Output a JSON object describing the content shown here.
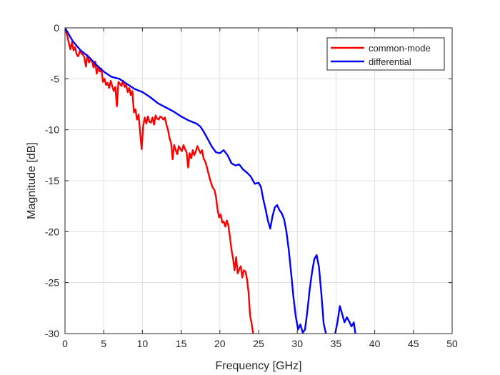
{
  "chart_data": {
    "type": "line",
    "title": "",
    "xlabel": "Frequency [GHz]",
    "ylabel": "Magnitude [dB]",
    "xlim": [
      0,
      50
    ],
    "ylim": [
      -30,
      0
    ],
    "xticks": [
      0,
      5,
      10,
      15,
      20,
      25,
      30,
      35,
      40,
      45,
      50
    ],
    "yticks": [
      0,
      -5,
      -10,
      -15,
      -20,
      -25,
      -30
    ],
    "grid": true,
    "legend_position": "top-right",
    "series": [
      {
        "name": "common-mode",
        "color": "#ff0000",
        "x": [
          0,
          0.3,
          0.5,
          0.7,
          0.9,
          1.1,
          1.3,
          1.5,
          1.7,
          1.9,
          2.1,
          2.3,
          2.5,
          2.7,
          2.9,
          3.1,
          3.3,
          3.5,
          3.7,
          3.9,
          4.1,
          4.3,
          4.5,
          4.7,
          4.9,
          5.1,
          5.3,
          5.5,
          5.7,
          5.9,
          6.1,
          6.3,
          6.5,
          6.7,
          6.9,
          7.1,
          7.3,
          7.5,
          7.7,
          7.9,
          8.1,
          8.3,
          8.5,
          8.7,
          8.9,
          9.1,
          9.3,
          9.5,
          9.7,
          9.9,
          10.1,
          10.3,
          10.5,
          10.7,
          10.9,
          11.1,
          11.3,
          11.5,
          11.7,
          11.9,
          12.1,
          12.3,
          12.5,
          12.7,
          12.9,
          13.1,
          13.3,
          13.5,
          13.7,
          13.9,
          14.1,
          14.3,
          14.5,
          14.7,
          14.9,
          15.1,
          15.3,
          15.5,
          15.7,
          15.9,
          16.1,
          16.3,
          16.5,
          16.7,
          16.9,
          17.1,
          17.3,
          17.5,
          17.7,
          17.9,
          18.1,
          18.3,
          18.5,
          18.7,
          18.9,
          19.1,
          19.3,
          19.5,
          19.7,
          19.9,
          20.1,
          20.3,
          20.5,
          20.7,
          20.9,
          21.1,
          21.3,
          21.5,
          21.7,
          21.9,
          22.1,
          22.3,
          22.5,
          22.7,
          22.9,
          23.1,
          23.3,
          23.5,
          23.7,
          23.9,
          24.1,
          24.3
        ],
        "y": [
          0,
          -0.8,
          -1.5,
          -2.1,
          -1.4,
          -2.2,
          -1.9,
          -2.6,
          -2.8,
          -2.3,
          -2.5,
          -2.6,
          -2.9,
          -3.8,
          -2.7,
          -3.4,
          -3.1,
          -3.3,
          -3.9,
          -3.3,
          -4.5,
          -3.8,
          -4.3,
          -4.0,
          -5.3,
          -5.0,
          -5.6,
          -5.4,
          -5.9,
          -5.2,
          -5.7,
          -6.2,
          -5.8,
          -7.7,
          -5.3,
          -5.5,
          -5.7,
          -5.2,
          -5.8,
          -5.6,
          -6.3,
          -5.9,
          -6.6,
          -6.2,
          -8.3,
          -8.0,
          -9.0,
          -8.5,
          -10.2,
          -11.9,
          -9.6,
          -8.8,
          -9.4,
          -8.7,
          -9.2,
          -9.3,
          -8.8,
          -9.5,
          -8.6,
          -8.9,
          -9.0,
          -8.7,
          -8.8,
          -9.0,
          -8.8,
          -9.5,
          -10.0,
          -10.8,
          -11.3,
          -12.9,
          -11.5,
          -12.0,
          -12.4,
          -11.6,
          -11.9,
          -12.1,
          -11.5,
          -11.9,
          -12.2,
          -13.7,
          -12.3,
          -12.8,
          -12.0,
          -12.5,
          -12.1,
          -11.6,
          -12.0,
          -12.3,
          -12.0,
          -12.8,
          -13.1,
          -13.6,
          -14.2,
          -14.8,
          -15.3,
          -15.7,
          -15.9,
          -16.6,
          -17.8,
          -18.6,
          -18.3,
          -19.1,
          -19.0,
          -19.5,
          -18.9,
          -19.4,
          -20.5,
          -21.8,
          -22.6,
          -23.8,
          -22.5,
          -24.1,
          -23.7,
          -23.4,
          -24.5,
          -23.8,
          -23.9,
          -24.6,
          -25.9,
          -28.2,
          -29.0,
          -30.0
        ]
      },
      {
        "name": "differential",
        "color": "#0000ff",
        "x": [
          0,
          1,
          2,
          3,
          4,
          5,
          6,
          7,
          8,
          9,
          10,
          11,
          12,
          13,
          14,
          15,
          16,
          17,
          17.5,
          18,
          18.5,
          19,
          19.5,
          20,
          20.5,
          21,
          21.5,
          22,
          22.5,
          23,
          23.5,
          24,
          24.5,
          25,
          25.3,
          25.6,
          25.9,
          26.2,
          26.5,
          26.8,
          27.1,
          27.4,
          27.7,
          28,
          28.3,
          28.6,
          28.9,
          29.2,
          29.5,
          29.8,
          30.1,
          30.4,
          30.7,
          31,
          31.3,
          31.6,
          31.9,
          32.2,
          32.5,
          32.8,
          33.1,
          33.4,
          33.7,
          34.0,
          34.3,
          34.6,
          34.9,
          35.2,
          35.5,
          35.8,
          36.1,
          36.4,
          36.7,
          37.0,
          37.3,
          37.5
        ],
        "y": [
          0,
          -1.3,
          -2.2,
          -2.8,
          -3.6,
          -4.3,
          -4.8,
          -5.0,
          -5.5,
          -6.0,
          -6.3,
          -6.8,
          -7.4,
          -7.8,
          -8.2,
          -8.7,
          -9.1,
          -9.4,
          -9.7,
          -10.3,
          -11.0,
          -11.7,
          -12.2,
          -12.3,
          -12.0,
          -12.5,
          -13.3,
          -13.5,
          -13.4,
          -13.9,
          -14.2,
          -14.6,
          -15.3,
          -15.2,
          -15.6,
          -16.8,
          -17.8,
          -18.9,
          -19.7,
          -18.5,
          -17.6,
          -17.4,
          -17.9,
          -18.2,
          -18.8,
          -20.0,
          -21.8,
          -24.0,
          -26.4,
          -28.3,
          -29.6,
          -29.1,
          -29.9,
          -29.6,
          -27.8,
          -25.7,
          -24.0,
          -22.7,
          -22.3,
          -23.5,
          -26.0,
          -29.0,
          -30.0,
          -31.5,
          -31.5,
          -31.5,
          -30.0,
          -28.8,
          -27.3,
          -28.1,
          -28.9,
          -28.4,
          -28.8,
          -29.3,
          -28.9,
          -30.0
        ]
      }
    ]
  }
}
